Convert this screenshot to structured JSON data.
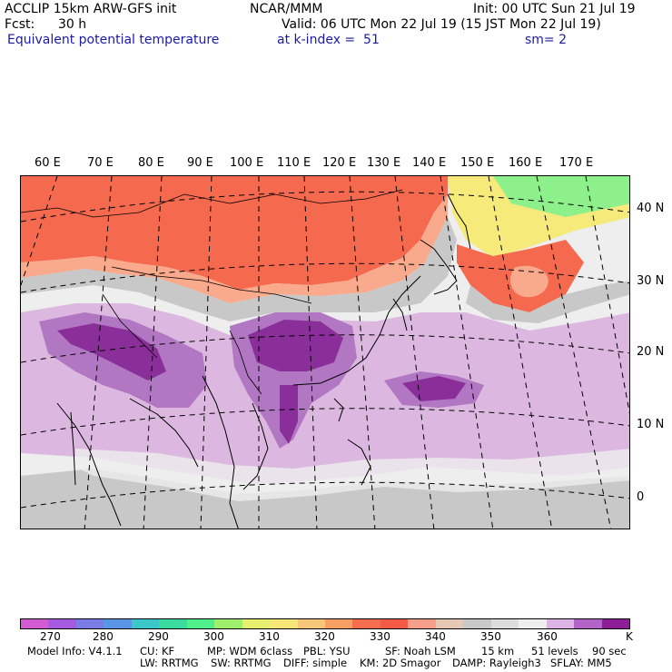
{
  "header": {
    "model": "ACCLIP 15km ARW-GFS init",
    "org": "NCAR/MMM",
    "init": "Init: 00 UTC Sun 21 Jul 19",
    "fcst_label": "Fcst:",
    "fcst_value": "30 h",
    "valid": "Valid: 06 UTC Mon 22 Jul 19 (15 JST Mon 22 Jul 19)",
    "field": "Equivalent potential temperature",
    "level": "at k-index =  51",
    "smooth": "sm= 2"
  },
  "map": {
    "lon_labels": [
      "60 E",
      "70 E",
      "80 E",
      "90 E",
      "100 E",
      "110 E",
      "120 E",
      "130 E",
      "140 E",
      "150 E",
      "160 E",
      "170 E"
    ],
    "lat_labels": [
      "40 N",
      "30 N",
      "20 N",
      "10 N",
      "0"
    ],
    "colors": {
      "background": "#eeeeee",
      "warm_red": "#f56a4e",
      "warm_salmon": "#f9a98c",
      "grey": "#c8c8c8",
      "light_purple": "#dcb8e0",
      "mid_purple": "#b277c2",
      "dark_purple": "#8a2e9a",
      "yellow": "#f6ea7a",
      "green": "#8df08a",
      "coast": "#000000",
      "grid": "#000000"
    }
  },
  "colorbar": {
    "colors": [
      "#d25ad2",
      "#a55ae0",
      "#7c7ce6",
      "#5a96e6",
      "#3cc8c8",
      "#3cdca0",
      "#50f08c",
      "#a0f06e",
      "#e6f06e",
      "#f6e678",
      "#f6c878",
      "#f6a064",
      "#f56e50",
      "#f55a46",
      "#f6a08c",
      "#e6c8b4",
      "#c8c8c8",
      "#dcdcdc",
      "#eeeeee",
      "#dcb4e6",
      "#b464c8",
      "#8c1e96"
    ],
    "ticks": [
      "270",
      "280",
      "290",
      "300",
      "310",
      "320",
      "330",
      "340",
      "350",
      "360"
    ],
    "unit": "K"
  },
  "model_info": {
    "line1": [
      "Model Info: V4.1.1",
      "CU: KF",
      "MP: WDM 6class",
      "PBL: YSU",
      "SF: Noah LSM",
      "15 km",
      "51 levels",
      "90 sec"
    ],
    "line2": [
      "LW: RRTMG",
      "SW: RRTMG",
      "DIFF: simple",
      "KM: 2D Smagor",
      "DAMP: Rayleigh3",
      "SFLAY: MM5"
    ]
  }
}
